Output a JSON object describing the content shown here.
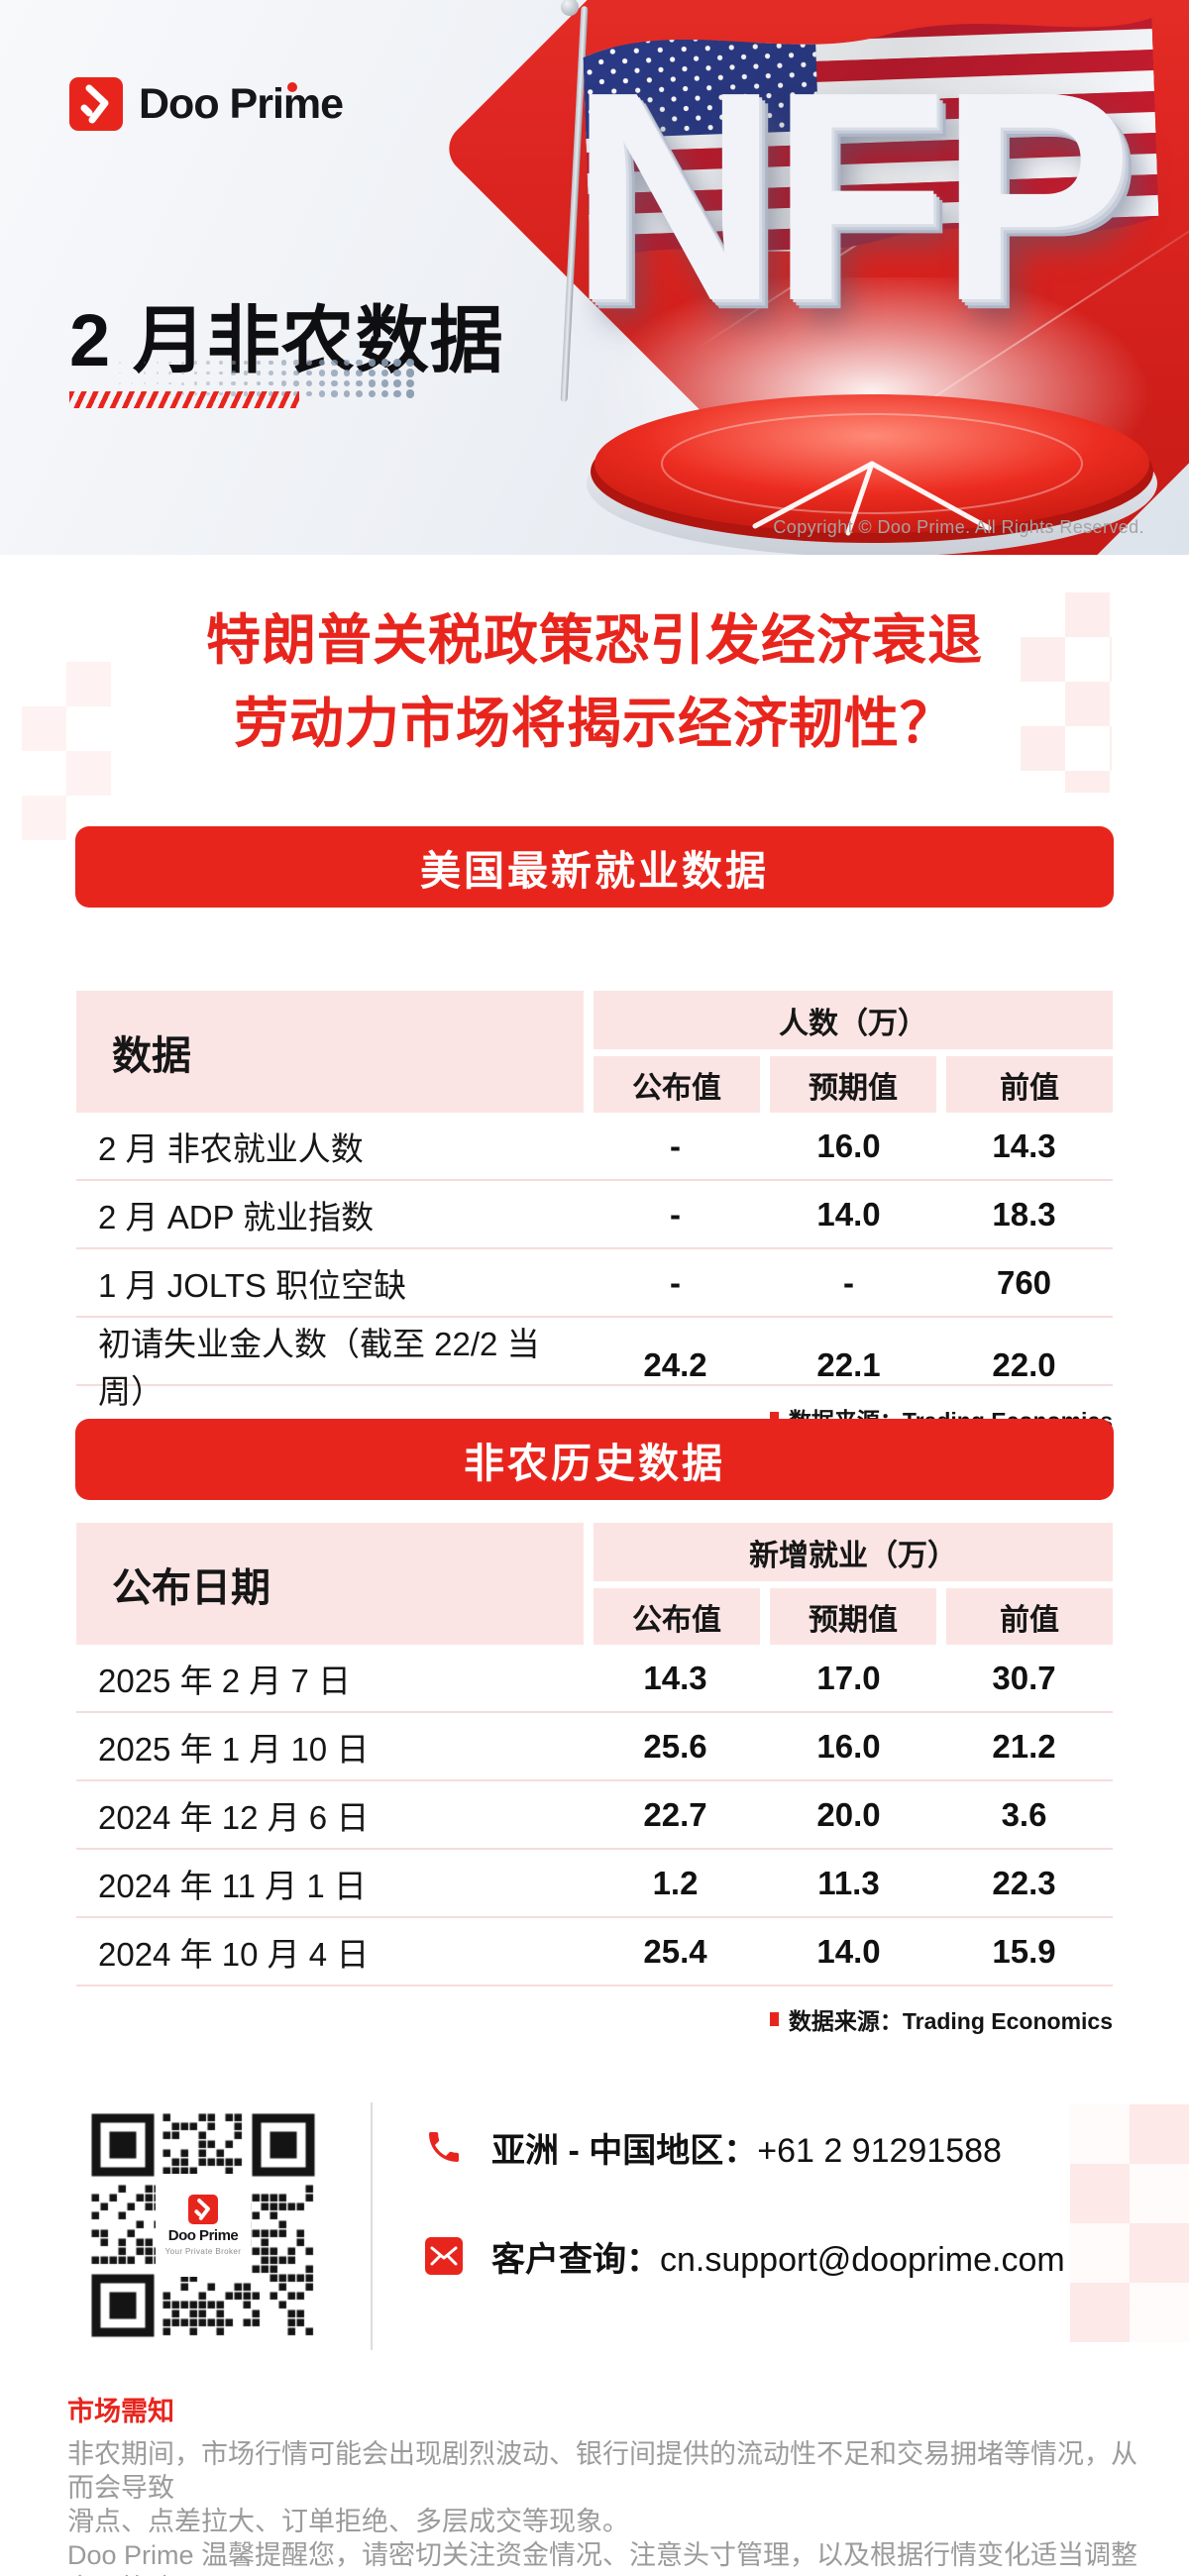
{
  "logo": {
    "text": "Doo Prime"
  },
  "hero": {
    "title": "2 月非农数据",
    "nfp": "NFP",
    "copyright": "Copyright © Doo Prime. All Rights Reserved."
  },
  "headline": {
    "line1": "特朗普关税政策恐引发经济衰退",
    "line2": "劳动力市场将揭示经济韧性？"
  },
  "us_jobs": {
    "banner": "美国最新就业数据",
    "corner": "数据",
    "group": "人数（万）",
    "col_published": "公布值",
    "col_expected": "预期值",
    "col_previous": "前值",
    "rows": [
      {
        "label": "2 月 非农就业人数",
        "published": "-",
        "expected": "16.0",
        "previous": "14.3"
      },
      {
        "label": "2 月 ADP 就业指数",
        "published": "-",
        "expected": "14.0",
        "previous": "18.3"
      },
      {
        "label": "1 月 JOLTS 职位空缺",
        "published": "-",
        "expected": "-",
        "previous": "760"
      },
      {
        "label": "初请失业金人数（截至 22/2 当周）",
        "published": "24.2",
        "expected": "22.1",
        "previous": "22.0"
      }
    ],
    "source": "数据来源：Trading Economics"
  },
  "nfp_history": {
    "banner": "非农历史数据",
    "corner": "公布日期",
    "group": "新增就业（万）",
    "col_published": "公布值",
    "col_expected": "预期值",
    "col_previous": "前值",
    "rows": [
      {
        "label": "2025 年 2 月 7 日",
        "published": "14.3",
        "expected": "17.0",
        "previous": "30.7"
      },
      {
        "label": "2025 年 1 月 10 日",
        "published": "25.6",
        "expected": "16.0",
        "previous": "21.2"
      },
      {
        "label": "2024 年 12 月 6 日",
        "published": "22.7",
        "expected": "20.0",
        "previous": "3.6"
      },
      {
        "label": "2024 年 11 月 1 日",
        "published": "1.2",
        "expected": "11.3",
        "previous": "22.3"
      },
      {
        "label": "2024 年 10 月 4 日",
        "published": "25.4",
        "expected": "14.0",
        "previous": "15.9"
      }
    ],
    "source": "数据来源：Trading Economics"
  },
  "contact": {
    "qr_brand": "Doo Prime",
    "qr_tagline": "Your Private Broker",
    "phone_icon": "phone-icon",
    "phone_label": "亚洲 - 中国地区：",
    "phone_value": "+61 2 91291588",
    "email_icon": "email-icon",
    "email_label": "客户查询：",
    "email_value": "cn.support@dooprime.com"
  },
  "disclaimer": {
    "title": "市场需知",
    "line1": "非农期间，市场行情可能会出现剧烈波动、银行间提供的流动性不足和交易拥堵等情况，从而会导致",
    "line2": "滑点、点差拉大、订单拒绝、多层成交等现象。",
    "line3": "Doo Prime 温馨提醒您，请密切关注资金情况、注意头寸管理，以及根据行情变化适当调整交易策略。"
  },
  "colors": {
    "brand_red": "#e8251d",
    "table_header_pink": "#fbe5e4",
    "row_divider_pink": "#f6dcdb",
    "text_dark": "#151515",
    "text_gray": "#9b9b9b",
    "flag_red": "#c01c2e",
    "flag_blue": "#2b3a86",
    "dots_blue_gray": "#8b9cb0"
  }
}
